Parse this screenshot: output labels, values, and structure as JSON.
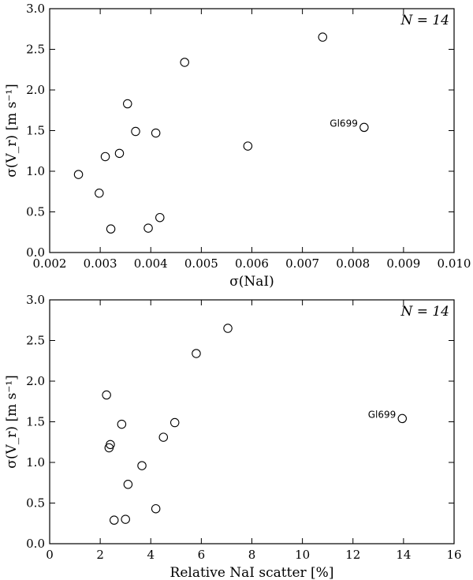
{
  "chart_data": [
    {
      "type": "scatter",
      "xlabel": "σ(NaI)",
      "ylabel": "σ(V_r) [m s⁻¹]",
      "xlim": [
        0.002,
        0.01
      ],
      "ylim": [
        0.0,
        3.0
      ],
      "x_ticks": [
        "0.002",
        "0.003",
        "0.004",
        "0.005",
        "0.006",
        "0.007",
        "0.008",
        "0.009",
        "0.010"
      ],
      "y_ticks": [
        "0.0",
        "0.5",
        "1.0",
        "1.5",
        "2.0",
        "2.5",
        "3.0"
      ],
      "annotation": "N = 14",
      "grid": false,
      "marker": "open-circle",
      "labeled_point": {
        "label": "Gl699",
        "x": 0.00822,
        "y": 1.54
      },
      "points": [
        {
          "x": 0.00257,
          "y": 0.96
        },
        {
          "x": 0.00298,
          "y": 0.73
        },
        {
          "x": 0.0031,
          "y": 1.18
        },
        {
          "x": 0.00321,
          "y": 0.29
        },
        {
          "x": 0.00338,
          "y": 1.22
        },
        {
          "x": 0.00354,
          "y": 1.83
        },
        {
          "x": 0.0037,
          "y": 1.49
        },
        {
          "x": 0.00395,
          "y": 0.3
        },
        {
          "x": 0.0041,
          "y": 1.47
        },
        {
          "x": 0.00418,
          "y": 0.43
        },
        {
          "x": 0.00467,
          "y": 2.34
        },
        {
          "x": 0.00592,
          "y": 1.31
        },
        {
          "x": 0.0074,
          "y": 2.65
        },
        {
          "x": 0.00822,
          "y": 1.54
        }
      ]
    },
    {
      "type": "scatter",
      "xlabel": "Relative NaI scatter [%]",
      "ylabel": "σ(V_r) [m s⁻¹]",
      "xlim": [
        0,
        16
      ],
      "ylim": [
        0.0,
        3.0
      ],
      "x_ticks": [
        "0",
        "2",
        "4",
        "6",
        "8",
        "10",
        "12",
        "14",
        "16"
      ],
      "y_ticks": [
        "0.0",
        "0.5",
        "1.0",
        "1.5",
        "2.0",
        "2.5",
        "3.0"
      ],
      "annotation": "N = 14",
      "grid": false,
      "marker": "open-circle",
      "labeled_point": {
        "label": "Gl699",
        "x": 13.95,
        "y": 1.54
      },
      "points": [
        {
          "x": 2.25,
          "y": 1.83
        },
        {
          "x": 2.35,
          "y": 1.18
        },
        {
          "x": 2.4,
          "y": 1.22
        },
        {
          "x": 2.55,
          "y": 0.29
        },
        {
          "x": 2.85,
          "y": 1.47
        },
        {
          "x": 3.0,
          "y": 0.3
        },
        {
          "x": 3.1,
          "y": 0.73
        },
        {
          "x": 3.65,
          "y": 0.96
        },
        {
          "x": 4.2,
          "y": 0.43
        },
        {
          "x": 4.5,
          "y": 1.31
        },
        {
          "x": 4.95,
          "y": 1.49
        },
        {
          "x": 5.8,
          "y": 2.34
        },
        {
          "x": 7.05,
          "y": 2.65
        },
        {
          "x": 13.95,
          "y": 1.54
        }
      ]
    }
  ]
}
